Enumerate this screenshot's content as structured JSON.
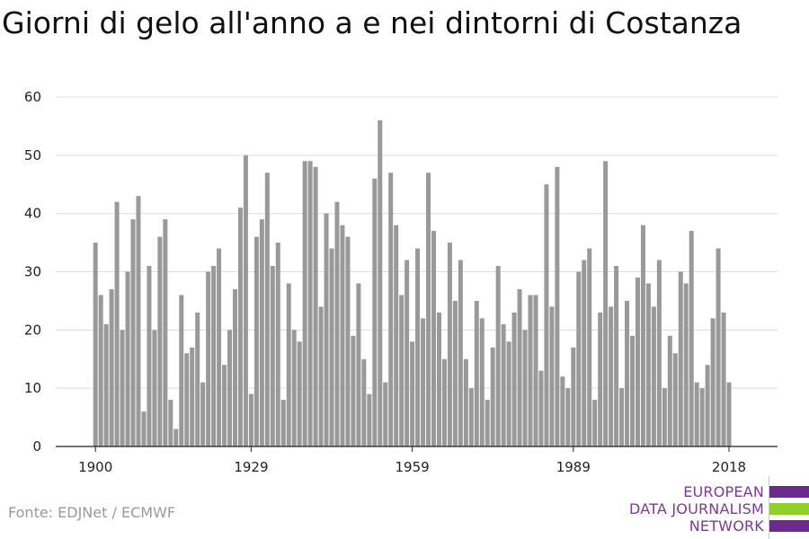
{
  "colors": {
    "bar": "#999999",
    "grid": "#dddddd",
    "axis": "#222222",
    "logo_text": "#7b3a96",
    "logo_purple": "#6a2a8e",
    "logo_green": "#8fd12a"
  },
  "source": "Fonte: EDJNet / ECMWF",
  "logo": {
    "lines": [
      "EUROPEAN",
      "DATA JOURNALISM",
      "NETWORK"
    ]
  },
  "chart_data": {
    "type": "bar",
    "title": "Giorni di gelo all'anno a e nei dintorni di Costanza",
    "xlabel": "",
    "ylabel": "",
    "x": [
      1900,
      1901,
      1902,
      1903,
      1904,
      1905,
      1906,
      1907,
      1908,
      1909,
      1910,
      1911,
      1912,
      1913,
      1914,
      1915,
      1916,
      1917,
      1918,
      1919,
      1920,
      1921,
      1922,
      1923,
      1924,
      1925,
      1926,
      1927,
      1928,
      1929,
      1930,
      1931,
      1932,
      1933,
      1934,
      1935,
      1936,
      1937,
      1938,
      1939,
      1940,
      1941,
      1942,
      1943,
      1944,
      1945,
      1946,
      1947,
      1948,
      1949,
      1950,
      1951,
      1952,
      1953,
      1954,
      1955,
      1956,
      1957,
      1958,
      1959,
      1960,
      1961,
      1962,
      1963,
      1964,
      1965,
      1966,
      1967,
      1968,
      1969,
      1970,
      1971,
      1972,
      1973,
      1974,
      1975,
      1976,
      1977,
      1978,
      1979,
      1980,
      1981,
      1982,
      1983,
      1984,
      1985,
      1986,
      1987,
      1988,
      1989,
      1990,
      1991,
      1992,
      1993,
      1994,
      1995,
      1996,
      1997,
      1998,
      1999,
      2000,
      2001,
      2002,
      2003,
      2004,
      2005,
      2006,
      2007,
      2008,
      2009,
      2010,
      2011,
      2012,
      2013,
      2014,
      2015,
      2016,
      2017,
      2018
    ],
    "values": [
      35,
      26,
      21,
      27,
      42,
      20,
      30,
      39,
      43,
      6,
      31,
      20,
      36,
      39,
      8,
      3,
      26,
      16,
      17,
      23,
      11,
      30,
      31,
      34,
      14,
      20,
      27,
      41,
      50,
      9,
      36,
      39,
      47,
      31,
      35,
      8,
      28,
      20,
      18,
      49,
      49,
      48,
      24,
      40,
      34,
      42,
      38,
      36,
      19,
      28,
      15,
      9,
      46,
      56,
      11,
      47,
      38,
      26,
      32,
      18,
      34,
      22,
      47,
      37,
      23,
      15,
      35,
      25,
      32,
      15,
      10,
      25,
      22,
      8,
      17,
      31,
      21,
      18,
      23,
      27,
      20,
      26,
      26,
      13,
      45,
      24,
      48,
      12,
      10,
      17,
      30,
      32,
      34,
      8,
      23,
      49,
      24,
      31,
      10,
      25,
      19,
      29,
      38,
      28,
      24,
      32,
      10,
      19,
      16,
      30,
      28,
      37,
      11,
      10,
      14,
      22,
      34,
      23,
      11
    ],
    "x_ticks": [
      1900,
      1929,
      1959,
      1989,
      2018
    ],
    "y_ticks": [
      0,
      10,
      20,
      30,
      40,
      50,
      60
    ],
    "xlim": [
      1900,
      2018
    ],
    "ylim": [
      0,
      60
    ],
    "grid": "horizontal",
    "legend": "none"
  }
}
